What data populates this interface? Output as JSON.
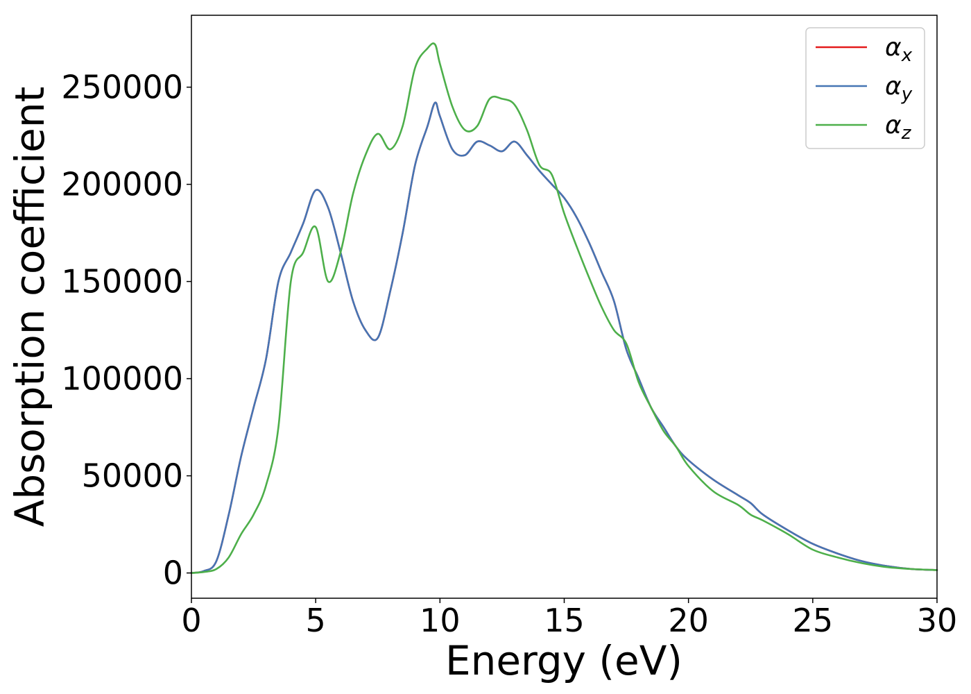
{
  "chart_data": {
    "type": "line",
    "title": "",
    "xlabel": "Energy (eV)",
    "ylabel": "Absorption coefficient",
    "xlim": [
      0,
      30
    ],
    "ylim": [
      -13000,
      287000
    ],
    "xticks": [
      0,
      5,
      10,
      15,
      20,
      25,
      30
    ],
    "yticks": [
      0,
      50000,
      100000,
      150000,
      200000,
      250000
    ],
    "grid": false,
    "legend": {
      "placement": "top-right"
    },
    "series": [
      {
        "name": "αx",
        "symbol": "α",
        "subscript": "x",
        "color": "#e41a1c",
        "x": [
          0,
          0.5,
          1,
          1.5,
          2,
          2.5,
          3,
          3.5,
          4,
          4.5,
          5,
          5.5,
          6,
          6.5,
          7,
          7.5,
          8,
          8.5,
          9,
          9.5,
          9.8,
          10,
          10.5,
          11,
          11.5,
          12,
          12.5,
          13,
          13.5,
          14,
          14.5,
          15,
          15.5,
          16,
          16.5,
          17,
          17.5,
          18,
          18.5,
          19,
          19.5,
          20,
          21,
          22,
          22.5,
          23,
          24,
          25,
          26,
          27,
          28,
          29,
          30
        ],
        "y": [
          0,
          1000,
          6000,
          30000,
          60000,
          85000,
          110000,
          150000,
          165000,
          180000,
          197000,
          188000,
          165000,
          140000,
          125000,
          121000,
          145000,
          175000,
          210000,
          230000,
          242000,
          235000,
          218000,
          215000,
          222000,
          220000,
          217000,
          222000,
          215000,
          207000,
          200000,
          193000,
          183000,
          170000,
          155000,
          140000,
          115000,
          100000,
          85000,
          75000,
          65000,
          58000,
          48000,
          40000,
          36000,
          30000,
          22000,
          15000,
          10000,
          6000,
          3500,
          2000,
          1500
        ]
      },
      {
        "name": "αy",
        "symbol": "α",
        "subscript": "y",
        "color": "#4575b4",
        "x": [
          0,
          0.5,
          1,
          1.5,
          2,
          2.5,
          3,
          3.5,
          4,
          4.5,
          5,
          5.5,
          6,
          6.5,
          7,
          7.5,
          8,
          8.5,
          9,
          9.5,
          9.8,
          10,
          10.5,
          11,
          11.5,
          12,
          12.5,
          13,
          13.5,
          14,
          14.5,
          15,
          15.5,
          16,
          16.5,
          17,
          17.5,
          18,
          18.5,
          19,
          19.5,
          20,
          21,
          22,
          22.5,
          23,
          24,
          25,
          26,
          27,
          28,
          29,
          30
        ],
        "y": [
          0,
          1000,
          6000,
          30000,
          60000,
          85000,
          110000,
          150000,
          165000,
          180000,
          197000,
          188000,
          165000,
          140000,
          125000,
          121000,
          145000,
          175000,
          210000,
          230000,
          242000,
          235000,
          218000,
          215000,
          222000,
          220000,
          217000,
          222000,
          215000,
          207000,
          200000,
          193000,
          183000,
          170000,
          155000,
          140000,
          115000,
          100000,
          85000,
          75000,
          65000,
          58000,
          48000,
          40000,
          36000,
          30000,
          22000,
          15000,
          10000,
          6000,
          3500,
          2000,
          1500
        ]
      },
      {
        "name": "αz",
        "symbol": "α",
        "subscript": "z",
        "color": "#4daf4a",
        "x": [
          0,
          0.5,
          1,
          1.5,
          2,
          2.5,
          3,
          3.5,
          4,
          4.5,
          5,
          5.5,
          6,
          6.5,
          7,
          7.5,
          8,
          8.5,
          9,
          9.5,
          9.8,
          10,
          10.5,
          11,
          11.5,
          12,
          12.5,
          13,
          13.5,
          14,
          14.5,
          15,
          15.5,
          16,
          16.5,
          17,
          17.5,
          18,
          18.5,
          19,
          19.5,
          20,
          21,
          22,
          22.5,
          23,
          24,
          25,
          26,
          27,
          28,
          29,
          30
        ],
        "y": [
          0,
          500,
          2000,
          8000,
          20000,
          30000,
          45000,
          75000,
          150000,
          165000,
          178000,
          150000,
          165000,
          195000,
          215000,
          226000,
          218000,
          230000,
          260000,
          270000,
          272000,
          262000,
          240000,
          228000,
          230000,
          244000,
          244000,
          241000,
          228000,
          210000,
          205000,
          185000,
          168000,
          152000,
          137000,
          125000,
          118000,
          98000,
          85000,
          73000,
          65000,
          55000,
          42000,
          35000,
          30000,
          27000,
          20000,
          12000,
          8000,
          5000,
          3000,
          2000,
          1500
        ]
      }
    ]
  }
}
